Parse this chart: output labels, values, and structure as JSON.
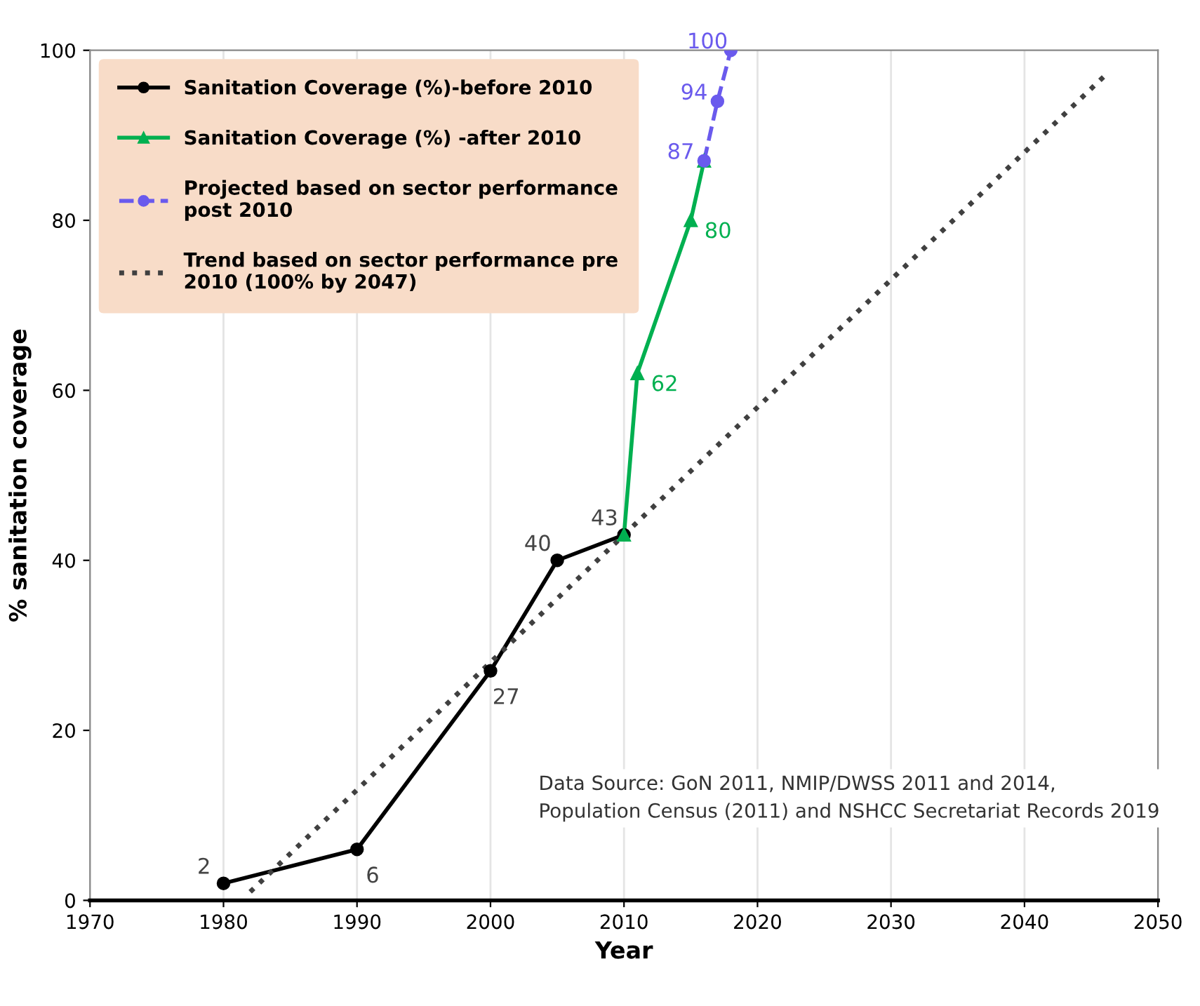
{
  "chart_data": {
    "type": "line",
    "xlabel": "Year",
    "ylabel": "% sanitation coverage",
    "xlim": [
      1970,
      2050
    ],
    "xticks": [
      1970,
      1980,
      1990,
      2000,
      2010,
      2020,
      2030,
      2040,
      2050
    ],
    "ylim": [
      0,
      100
    ],
    "yticks": [
      0,
      20,
      40,
      60,
      80,
      100
    ],
    "grid": "x",
    "legend": "top left",
    "series": [
      {
        "name": "Sanitation Coverage (%)-before 2010",
        "color": "#000000",
        "marker": "circle",
        "line_style": "solid",
        "x": [
          1980,
          1990,
          2000,
          2005,
          2010
        ],
        "values": [
          2,
          6,
          27,
          40,
          43
        ],
        "value_labels": [
          "2",
          "6",
          "27",
          "40",
          "43"
        ]
      },
      {
        "name": "Sanitation Coverage (%) -after 2010",
        "color": "#00b050",
        "marker": "triangle",
        "line_style": "solid",
        "x": [
          2010,
          2011,
          2015,
          2016
        ],
        "values": [
          43,
          62,
          80,
          87
        ],
        "value_labels": [
          null,
          "62",
          "80",
          null
        ]
      },
      {
        "name": "Projected based on sector performance post 2010",
        "color": "#6a5aed",
        "marker": "circle",
        "line_style": "dashed",
        "x": [
          2016,
          2017,
          2018
        ],
        "values": [
          87,
          94,
          100
        ],
        "value_labels": [
          "87",
          "94",
          "100"
        ]
      },
      {
        "name": "Trend based on sector performance pre 2010 (100% by 2047)",
        "color": "#404040",
        "marker": "none",
        "line_style": "dotted",
        "x": [
          1982,
          2046
        ],
        "values": [
          1,
          97
        ]
      }
    ],
    "annotations": [
      "Data Source: GoN 2011, NMIP/DWSS 2011 and 2014,\nPopulation Census (2011) and NSHCC Secretariat Records 2019"
    ]
  }
}
